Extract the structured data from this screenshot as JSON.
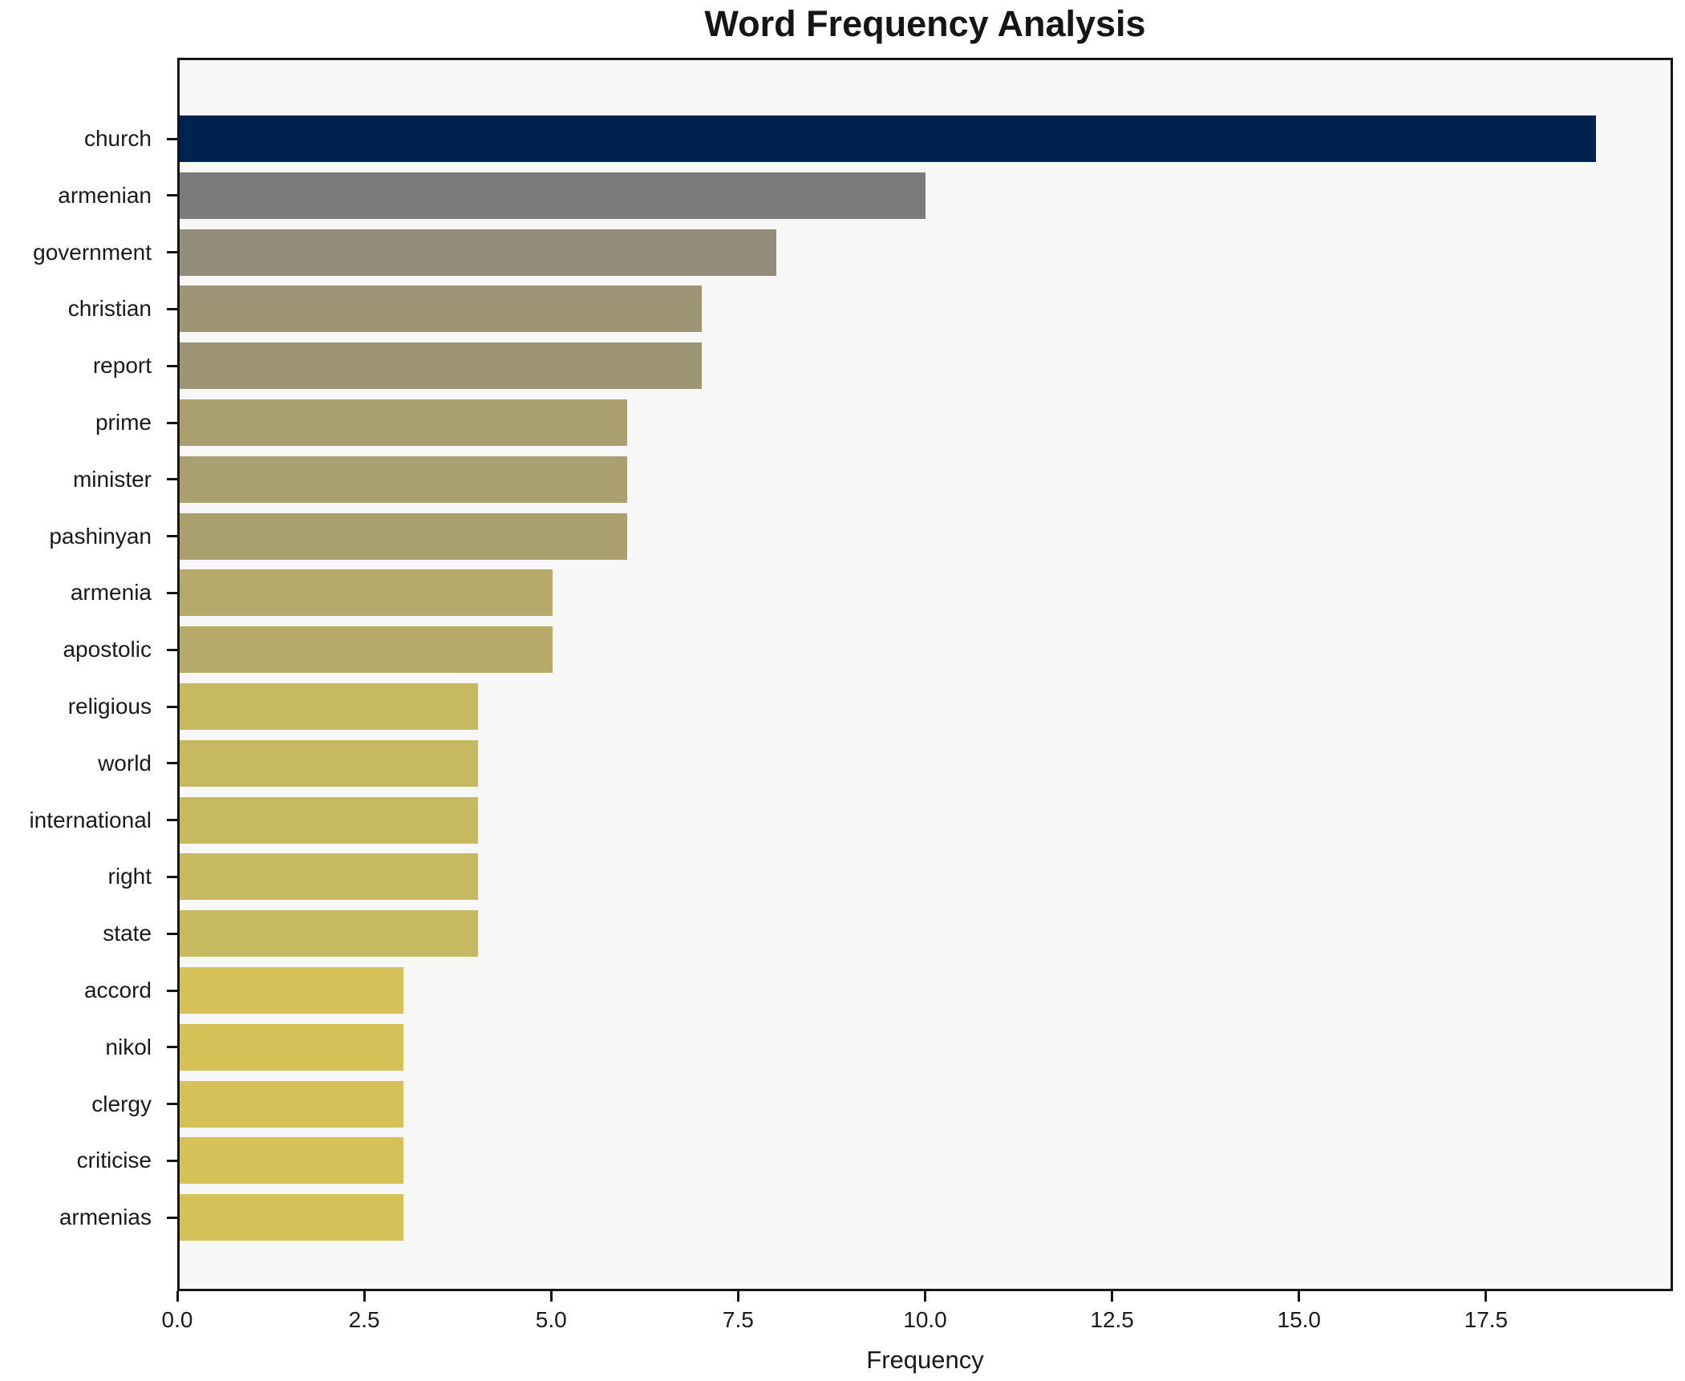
{
  "figure": {
    "background": "#ffffff",
    "plot_background": "#f7f7f8",
    "spine_color": "#151515",
    "text_color": "#1a1a1a"
  },
  "chart_data": {
    "type": "bar",
    "orientation": "horizontal",
    "title": "Word Frequency Analysis",
    "xlabel": "Frequency",
    "ylabel": "",
    "xlim": [
      0,
      20
    ],
    "grid": false,
    "legend": false,
    "x_ticks": [
      0,
      2.5,
      5,
      7.5,
      10,
      12.5,
      15,
      17.5
    ],
    "x_tick_labels": [
      "0.0",
      "2.5",
      "5.0",
      "7.5",
      "10.0",
      "12.5",
      "15.0",
      "17.5"
    ],
    "categories": [
      "church",
      "armenian",
      "government",
      "christian",
      "report",
      "prime",
      "minister",
      "pashinyan",
      "armenia",
      "apostolic",
      "religious",
      "world",
      "international",
      "right",
      "state",
      "accord",
      "nikol",
      "clergy",
      "criticise",
      "armenias"
    ],
    "values": [
      19,
      10,
      8,
      7,
      7,
      6,
      6,
      6,
      5,
      5,
      4,
      4,
      4,
      4,
      4,
      3,
      3,
      3,
      3,
      3
    ],
    "bar_colors": [
      "#00224e",
      "#7b7b79",
      "#938d7b",
      "#9d9574",
      "#9d9574",
      "#a9a06e",
      "#a9a06e",
      "#a9a06e",
      "#b5aa69",
      "#b5aa69",
      "#c7b95f",
      "#c7b95f",
      "#c7b95f",
      "#c7b95f",
      "#c7b95f",
      "#d5c158",
      "#d5c158",
      "#d5c158",
      "#d5c158",
      "#d5c158"
    ]
  }
}
